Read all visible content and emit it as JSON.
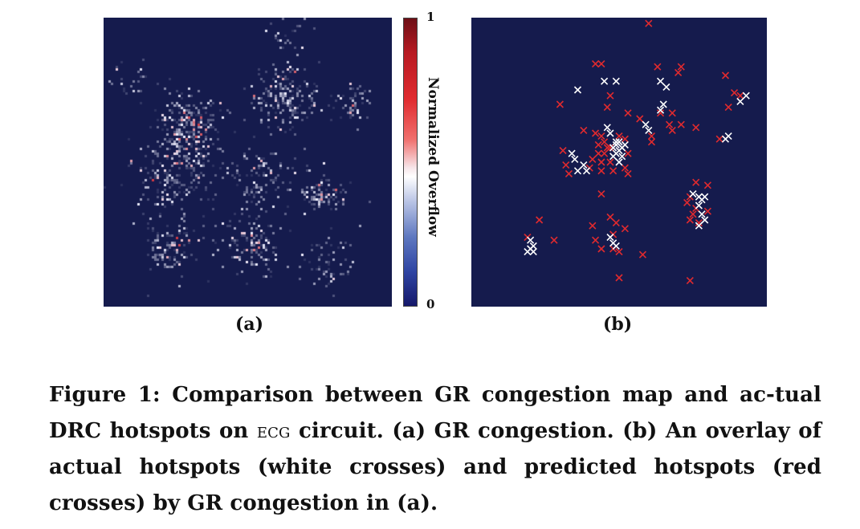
{
  "figure": {
    "panels": [
      {
        "id": "a",
        "label": "(a)",
        "kind": "heatmap",
        "background": "#151b4d"
      },
      {
        "id": "b",
        "label": "(b)",
        "kind": "scatter-overlay",
        "background": "#151b4d"
      }
    ],
    "colorbar": {
      "label": "Normalized Overflow",
      "max_label": "1",
      "min_label": "0",
      "colors": [
        "#15186a",
        "#2f45a3",
        "#ffffff",
        "#e02b2f",
        "#6d0f16"
      ]
    },
    "caption": {
      "prefix": "Figure 1: Comparison between GR congestion map and ac-tual DRC hotspots on",
      "circuit": "ecg",
      "suffix": "circuit. (a) GR congestion. (b) An overlay of actual hotspots (white crosses) and predicted hotspots (red crosses) by GR congestion in (a)."
    }
  },
  "chart_data": [
    {
      "type": "heatmap",
      "title": "(a)",
      "colorbar_label": "Normalized Overflow",
      "range": [
        0,
        1
      ],
      "clusters": [
        {
          "cx": 0.3,
          "cy": 0.38,
          "spread": 0.09,
          "density": 1.0
        },
        {
          "cx": 0.62,
          "cy": 0.27,
          "spread": 0.08,
          "density": 0.9
        },
        {
          "cx": 0.86,
          "cy": 0.3,
          "spread": 0.05,
          "density": 0.7
        },
        {
          "cx": 0.24,
          "cy": 0.55,
          "spread": 0.1,
          "density": 0.6
        },
        {
          "cx": 0.54,
          "cy": 0.55,
          "spread": 0.08,
          "density": 0.55
        },
        {
          "cx": 0.75,
          "cy": 0.6,
          "spread": 0.06,
          "density": 0.8
        },
        {
          "cx": 0.23,
          "cy": 0.8,
          "spread": 0.07,
          "density": 0.7
        },
        {
          "cx": 0.5,
          "cy": 0.78,
          "spread": 0.08,
          "density": 0.7
        },
        {
          "cx": 0.78,
          "cy": 0.85,
          "spread": 0.07,
          "density": 0.55
        },
        {
          "cx": 0.63,
          "cy": 0.05,
          "spread": 0.06,
          "density": 0.3
        },
        {
          "cx": 0.08,
          "cy": 0.2,
          "spread": 0.05,
          "density": 0.3
        }
      ]
    },
    {
      "type": "scatter",
      "title": "(b)",
      "series": [
        {
          "name": "actual hotspots (white crosses)",
          "color": "#ffffff",
          "points": [
            [
              0.36,
              0.25
            ],
            [
              0.45,
              0.22
            ],
            [
              0.49,
              0.22
            ],
            [
              0.64,
              0.22
            ],
            [
              0.66,
              0.24
            ],
            [
              0.65,
              0.3
            ],
            [
              0.64,
              0.32
            ],
            [
              0.59,
              0.37
            ],
            [
              0.6,
              0.39
            ],
            [
              0.46,
              0.38
            ],
            [
              0.47,
              0.4
            ],
            [
              0.49,
              0.43
            ],
            [
              0.48,
              0.45
            ],
            [
              0.49,
              0.44
            ],
            [
              0.5,
              0.43
            ],
            [
              0.51,
              0.45
            ],
            [
              0.5,
              0.46
            ],
            [
              0.49,
              0.47
            ],
            [
              0.51,
              0.48
            ],
            [
              0.52,
              0.44
            ],
            [
              0.48,
              0.48
            ],
            [
              0.5,
              0.5
            ],
            [
              0.34,
              0.47
            ],
            [
              0.35,
              0.49
            ],
            [
              0.38,
              0.51
            ],
            [
              0.39,
              0.53
            ],
            [
              0.36,
              0.53
            ],
            [
              0.87,
              0.41
            ],
            [
              0.86,
              0.42
            ],
            [
              0.91,
              0.29
            ],
            [
              0.93,
              0.27
            ],
            [
              0.75,
              0.61
            ],
            [
              0.77,
              0.62
            ],
            [
              0.78,
              0.63
            ],
            [
              0.79,
              0.62
            ],
            [
              0.77,
              0.65
            ],
            [
              0.78,
              0.68
            ],
            [
              0.79,
              0.7
            ],
            [
              0.77,
              0.72
            ],
            [
              0.2,
              0.77
            ],
            [
              0.21,
              0.79
            ],
            [
              0.2,
              0.8
            ],
            [
              0.19,
              0.81
            ],
            [
              0.21,
              0.81
            ],
            [
              0.47,
              0.76
            ],
            [
              0.48,
              0.78
            ],
            [
              0.49,
              0.79
            ]
          ]
        },
        {
          "name": "predicted hotspots (red crosses)",
          "color": "#e02a2e",
          "points": [
            [
              0.6,
              0.02
            ],
            [
              0.42,
              0.16
            ],
            [
              0.44,
              0.16
            ],
            [
              0.63,
              0.17
            ],
            [
              0.71,
              0.17
            ],
            [
              0.7,
              0.19
            ],
            [
              0.86,
              0.2
            ],
            [
              0.89,
              0.26
            ],
            [
              0.91,
              0.27
            ],
            [
              0.87,
              0.31
            ],
            [
              0.3,
              0.3
            ],
            [
              0.47,
              0.27
            ],
            [
              0.46,
              0.31
            ],
            [
              0.53,
              0.33
            ],
            [
              0.57,
              0.35
            ],
            [
              0.64,
              0.33
            ],
            [
              0.68,
              0.33
            ],
            [
              0.67,
              0.37
            ],
            [
              0.71,
              0.37
            ],
            [
              0.68,
              0.39
            ],
            [
              0.61,
              0.41
            ],
            [
              0.61,
              0.43
            ],
            [
              0.76,
              0.38
            ],
            [
              0.84,
              0.42
            ],
            [
              0.38,
              0.39
            ],
            [
              0.42,
              0.4
            ],
            [
              0.44,
              0.41
            ],
            [
              0.45,
              0.43
            ],
            [
              0.43,
              0.44
            ],
            [
              0.46,
              0.45
            ],
            [
              0.47,
              0.45
            ],
            [
              0.45,
              0.47
            ],
            [
              0.43,
              0.47
            ],
            [
              0.41,
              0.49
            ],
            [
              0.44,
              0.5
            ],
            [
              0.47,
              0.5
            ],
            [
              0.5,
              0.41
            ],
            [
              0.52,
              0.42
            ],
            [
              0.53,
              0.47
            ],
            [
              0.52,
              0.52
            ],
            [
              0.31,
              0.46
            ],
            [
              0.32,
              0.51
            ],
            [
              0.33,
              0.54
            ],
            [
              0.4,
              0.52
            ],
            [
              0.44,
              0.53
            ],
            [
              0.48,
              0.53
            ],
            [
              0.53,
              0.54
            ],
            [
              0.76,
              0.57
            ],
            [
              0.8,
              0.58
            ],
            [
              0.74,
              0.62
            ],
            [
              0.73,
              0.64
            ],
            [
              0.76,
              0.66
            ],
            [
              0.75,
              0.68
            ],
            [
              0.8,
              0.67
            ],
            [
              0.74,
              0.7
            ],
            [
              0.77,
              0.71
            ],
            [
              0.44,
              0.61
            ],
            [
              0.23,
              0.7
            ],
            [
              0.41,
              0.72
            ],
            [
              0.47,
              0.69
            ],
            [
              0.49,
              0.71
            ],
            [
              0.52,
              0.73
            ],
            [
              0.48,
              0.75
            ],
            [
              0.19,
              0.76
            ],
            [
              0.28,
              0.77
            ],
            [
              0.44,
              0.8
            ],
            [
              0.48,
              0.8
            ],
            [
              0.5,
              0.81
            ],
            [
              0.58,
              0.82
            ],
            [
              0.42,
              0.77
            ],
            [
              0.5,
              0.9
            ],
            [
              0.74,
              0.91
            ]
          ]
        }
      ]
    }
  ]
}
